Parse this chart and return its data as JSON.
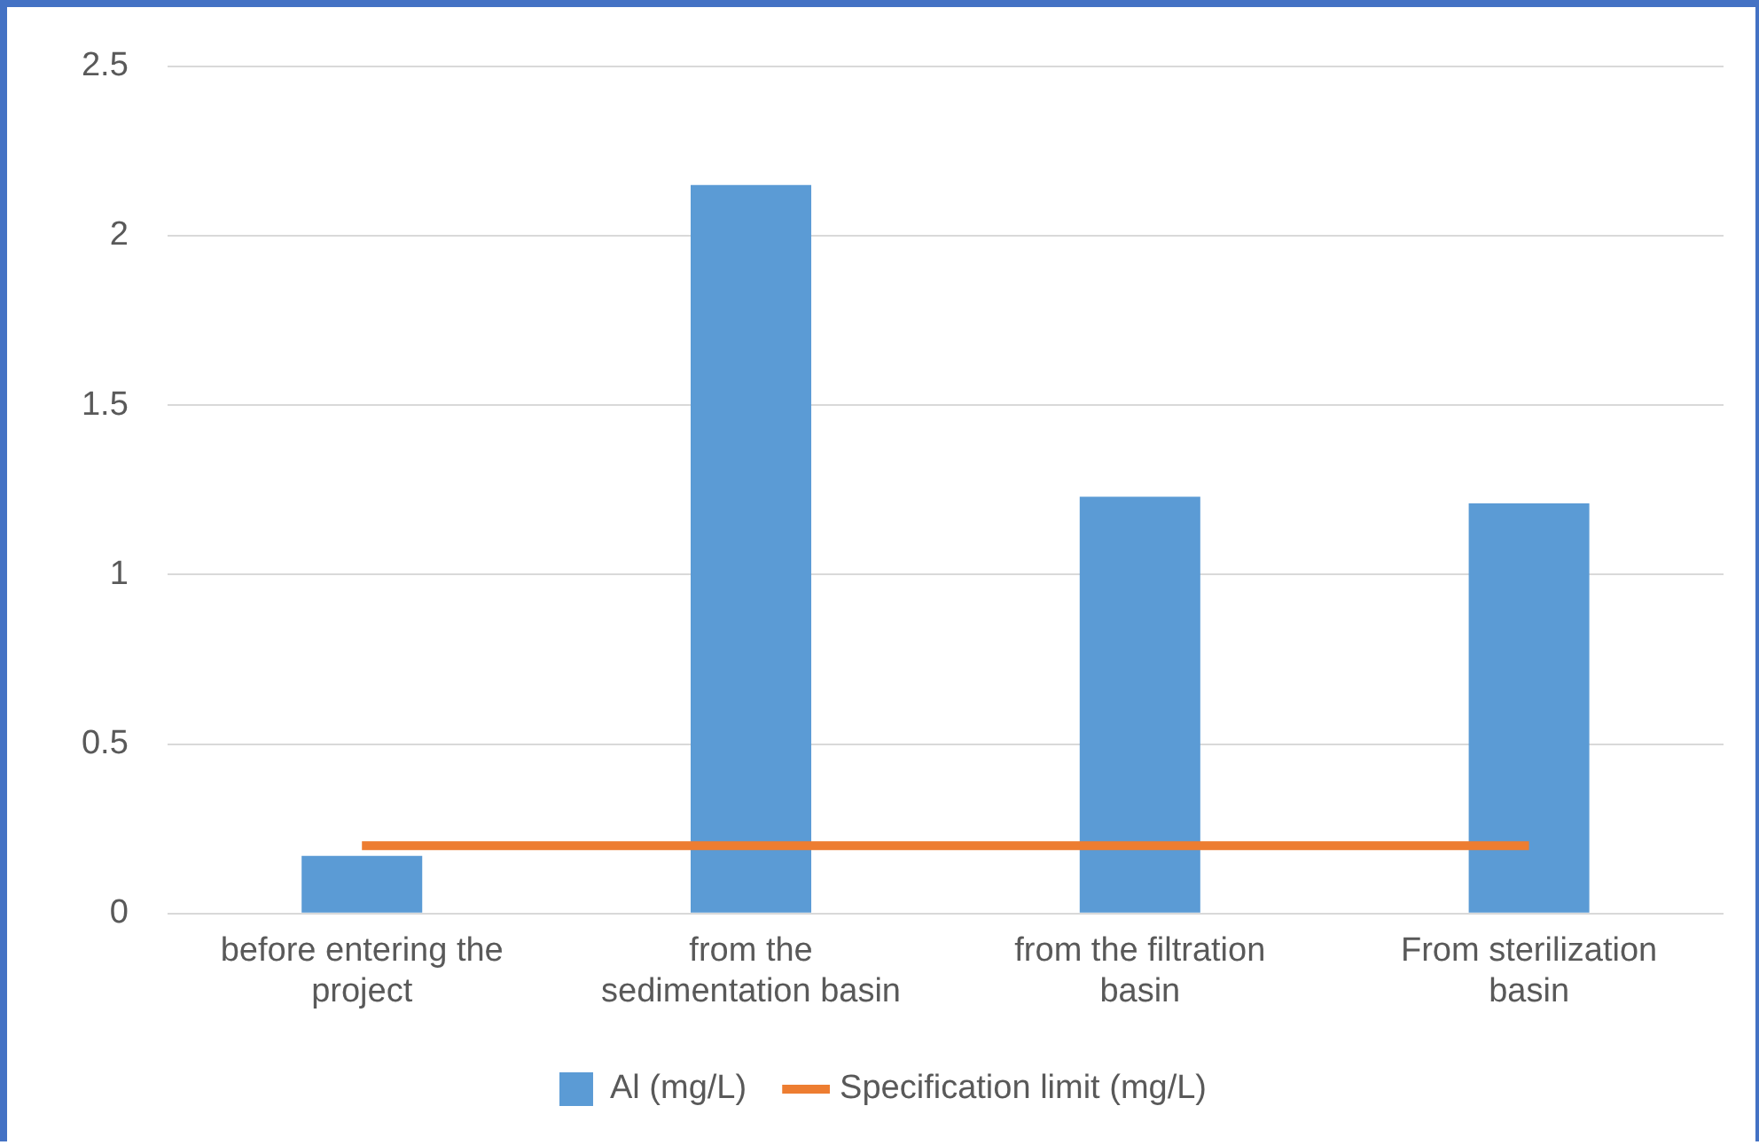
{
  "chart_data": {
    "type": "bar",
    "categories": [
      "before entering the project",
      "from the sedimentation basin",
      "from the filtration basin",
      "From sterilization basin"
    ],
    "series": [
      {
        "name": "Al (mg/L)",
        "color": "#5b9bd5",
        "values": [
          0.17,
          2.15,
          1.23,
          1.21
        ]
      },
      {
        "name": "Specification limit (mg/L)",
        "type": "line",
        "color": "#ed7d31",
        "values": [
          0.2,
          0.2,
          0.2,
          0.2
        ]
      }
    ],
    "ylim": [
      0,
      2.5
    ],
    "yticks": [
      0,
      0.5,
      1,
      1.5,
      2,
      2.5
    ],
    "grid": "y",
    "legend": "bottom",
    "marker": "none"
  }
}
